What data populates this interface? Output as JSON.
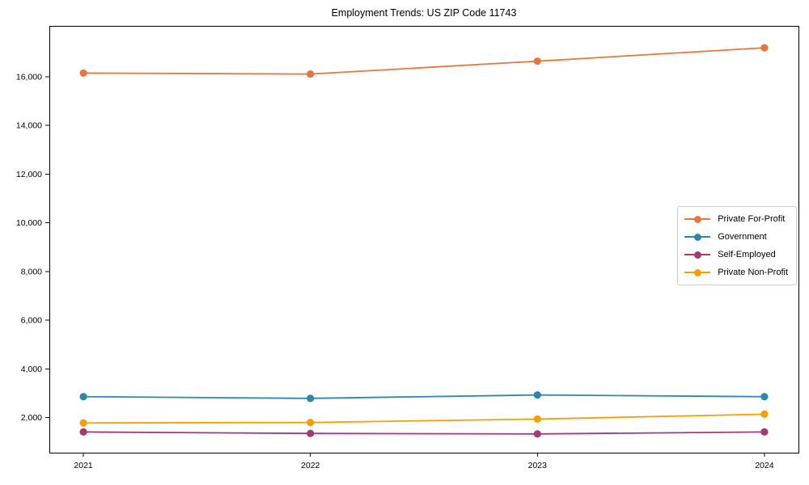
{
  "chart_data": {
    "type": "line",
    "title": "Employment Trends: US ZIP Code 11743",
    "xlabel": "",
    "ylabel": "",
    "x": [
      2021,
      2022,
      2023,
      2024
    ],
    "xticks": [
      "2021",
      "2022",
      "2023",
      "2024"
    ],
    "yticks": [
      2000,
      4000,
      6000,
      8000,
      10000,
      12000,
      14000,
      16000
    ],
    "ylim": [
      560,
      18090
    ],
    "grid": false,
    "legend_position": "center right",
    "marker": "circle",
    "series": [
      {
        "name": "Private For-Profit",
        "color": "#E8763C",
        "values": [
          16150,
          16110,
          16640,
          17190
        ]
      },
      {
        "name": "Government",
        "color": "#2E86AB",
        "values": [
          2860,
          2790,
          2930,
          2860
        ]
      },
      {
        "name": "Self-Employed",
        "color": "#A23B72",
        "values": [
          1410,
          1350,
          1330,
          1410
        ]
      },
      {
        "name": "Private Non-Profit",
        "color": "#F5A000",
        "values": [
          1780,
          1800,
          1940,
          2140
        ]
      }
    ]
  }
}
